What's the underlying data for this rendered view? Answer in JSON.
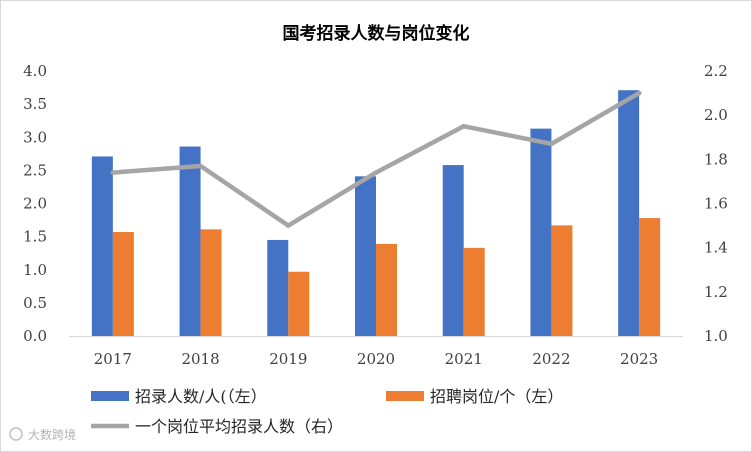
{
  "chart_data": {
    "type": "bar",
    "title": "国考招录人数与岗位变化",
    "categories": [
      "2017",
      "2018",
      "2019",
      "2020",
      "2021",
      "2022",
      "2023"
    ],
    "series": [
      {
        "name": "招录人数/人(（左）",
        "kind": "bar",
        "axis": "left",
        "color": "#4472c4",
        "values": [
          2.71,
          2.86,
          1.45,
          2.41,
          2.58,
          3.13,
          3.71
        ]
      },
      {
        "name": "招聘岗位/个（左）",
        "kind": "bar",
        "axis": "left",
        "color": "#ed7d31",
        "values": [
          1.57,
          1.61,
          0.97,
          1.39,
          1.33,
          1.67,
          1.78
        ]
      },
      {
        "name": "一个岗位平均招录人数（右）",
        "kind": "line",
        "axis": "right",
        "color": "#a5a5a5",
        "values": [
          1.74,
          1.77,
          1.5,
          1.74,
          1.95,
          1.87,
          2.1
        ]
      }
    ],
    "y_left": {
      "min": 0,
      "max": 4,
      "ticks": [
        "0.0",
        "0.5",
        "1.0",
        "1.5",
        "2.0",
        "2.5",
        "3.0",
        "3.5",
        "4.0"
      ]
    },
    "y_right": {
      "min": 1,
      "max": 2.2,
      "ticks": [
        "1.0",
        "1.2",
        "1.4",
        "1.6",
        "1.8",
        "2.0",
        "2.2"
      ]
    },
    "grid": false,
    "legend_position": "bottom"
  },
  "watermark": "大数跨境"
}
